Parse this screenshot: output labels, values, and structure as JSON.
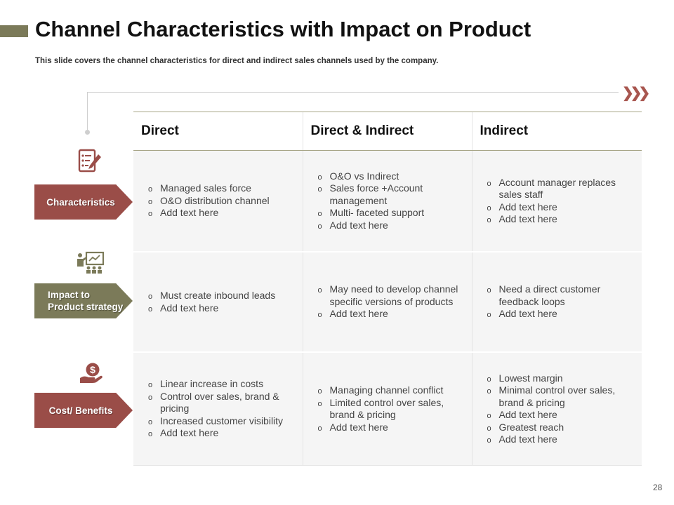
{
  "slide": {
    "title": "Channel Characteristics with Impact on Product",
    "subtitle": "This slide covers the channel characteristics for direct and indirect sales channels used by the company.",
    "page_number": "28"
  },
  "table": {
    "headers": [
      "Direct",
      "Direct & Indirect",
      "Indirect"
    ],
    "rows": [
      {
        "label": "Characteristics",
        "icon": "checklist-pencil-icon",
        "cells": [
          [
            "Managed sales force",
            "O&O distribution channel",
            "Add text here"
          ],
          [
            "O&O vs Indirect",
            "Sales force +Account management",
            "Multi- faceted support",
            "Add text here"
          ],
          [
            "Account manager replaces sales staff",
            "Add text here",
            "Add text here"
          ]
        ]
      },
      {
        "label": [
          "Impact to",
          "Product strategy"
        ],
        "icon": "presentation-audience-icon",
        "cells": [
          [
            "Must create inbound leads",
            "Add text here"
          ],
          [
            "May need to develop channel specific versions of products",
            "Add text here"
          ],
          [
            "Need a direct customer feedback loops",
            "Add text here"
          ]
        ]
      },
      {
        "label": "Cost/ Benefits",
        "icon": "hand-dollar-icon",
        "cells": [
          [
            "Linear increase in costs",
            "Control over sales, brand & pricing",
            "Increased customer visibility",
            "Add text here"
          ],
          [
            "Managing channel conflict",
            "Limited control over sales, brand & pricing",
            "Add text here"
          ],
          [
            "Lowest margin",
            "Minimal control over sales, brand & pricing",
            "Add text here",
            "Greatest reach",
            "Add text here"
          ]
        ]
      }
    ]
  },
  "colors": {
    "olive": "#7b7a59",
    "maroon": "#9a4d48",
    "chevron": "#a8564f"
  },
  "decor": {
    "chevrons_icon": "triple-chevron-right-icon"
  }
}
